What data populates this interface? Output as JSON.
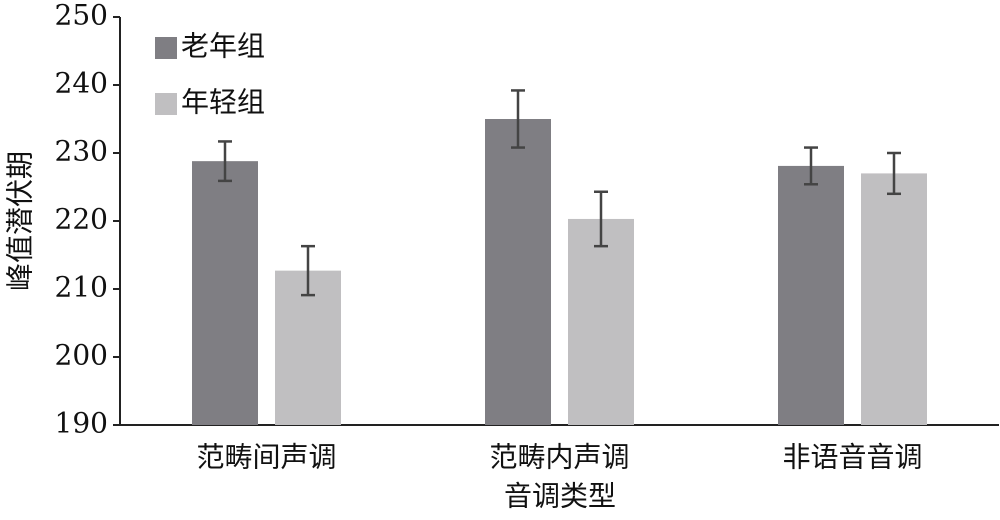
{
  "chart_data": {
    "type": "bar",
    "ylabel": "峰值潜伏期",
    "xlabel": "音调类型",
    "categories": [
      "范畴间声调",
      "范畴内声调",
      "非语音音调"
    ],
    "series": [
      {
        "name": "老年组",
        "color": "#7f7e83",
        "values": [
          228.8,
          235.0,
          228.1
        ],
        "errors": [
          2.9,
          4.2,
          2.7
        ]
      },
      {
        "name": "年轻组",
        "color": "#c0bfc1",
        "values": [
          212.7,
          220.3,
          227.0
        ],
        "errors": [
          3.6,
          4.0,
          3.0
        ]
      }
    ],
    "ylim": [
      190,
      250
    ],
    "yticks": [
      190,
      200,
      210,
      220,
      230,
      240,
      250
    ],
    "legend": "upper-left"
  }
}
